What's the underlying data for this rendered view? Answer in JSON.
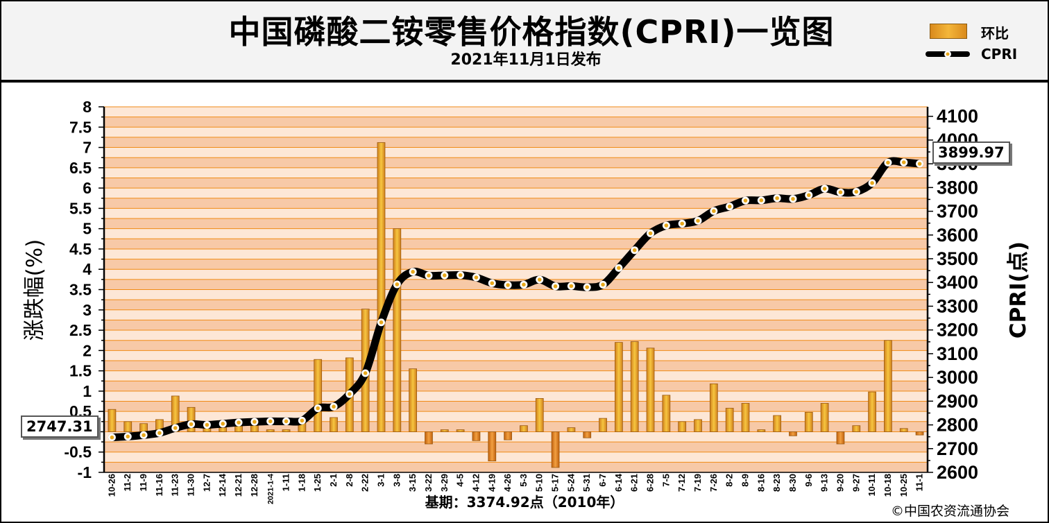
{
  "header": {
    "title": "中国磷酸二铵零售价格指数(CPRI)一览图",
    "subtitle": "2021年11月1日发布"
  },
  "legend": {
    "bar_label": "环比",
    "line_label": "CPRI"
  },
  "callouts": {
    "start_value": "2747.31",
    "end_value": "3899.97"
  },
  "footnote": "基期：3374.92点（2010年）",
  "copyright": "©中国农资流通协会",
  "colors": {
    "band_light": "#fde7d6",
    "band_dark": "#f7c9a7",
    "grid_line": "#f08a14",
    "bar_fill_light": "#f7c640",
    "bar_fill_dark": "#cf7f1c",
    "line": "#000000",
    "marker_fill": "#ffffff",
    "marker_dot": "#e8a81c"
  },
  "chart_data": {
    "type": "bar",
    "categories": [
      "10-26",
      "11-2",
      "11-9",
      "11-16",
      "11-23",
      "11-30",
      "12-7",
      "12-14",
      "12-21",
      "12-28",
      "2021-1-4",
      "1-11",
      "1-18",
      "1-25",
      "2-1",
      "2-8",
      "2-22",
      "3-1",
      "3-8",
      "3-15",
      "3-22",
      "3-29",
      "4-5",
      "4-12",
      "4-19",
      "4-26",
      "5-3",
      "5-10",
      "5-17",
      "5-24",
      "5-31",
      "6-7",
      "6-14",
      "6-21",
      "6-28",
      "7-5",
      "7-12",
      "7-19",
      "7-26",
      "8-2",
      "8-9",
      "8-16",
      "8-23",
      "8-30",
      "9-6",
      "9-13",
      "9-20",
      "9-27",
      "10-11",
      "10-18",
      "10-25",
      "11-1"
    ],
    "tick_labels": [
      "10-26",
      "11-2",
      "11-9",
      "11-16",
      "11-23",
      "11-30",
      "12-7",
      "12-14",
      "12-21",
      "12-28",
      "2021-1-4",
      "1-11",
      "1-18",
      "1-25",
      "2-1",
      "2-8",
      "2-22",
      "3-1",
      "3-8",
      "3-15",
      "3-22",
      "3-29",
      "4-5",
      "4-12",
      "4-19",
      "4-26",
      "5-3",
      "5-10",
      "5-17",
      "5-24",
      "5-31",
      "6-7",
      "6-14",
      "6-21",
      "6-28",
      "7-5",
      "7-12",
      "7-19",
      "7-26",
      "8-2",
      "8-9",
      "8-16",
      "8-23",
      "8-30",
      "9-6",
      "9-13",
      "9-20",
      "9-27",
      "10-11",
      "10-18",
      "10-25",
      "11-1"
    ],
    "series": [
      {
        "name": "环比",
        "axis": "left",
        "type": "bar",
        "values": [
          0.55,
          0.25,
          0.2,
          0.3,
          0.88,
          0.6,
          0.1,
          0.1,
          0.2,
          0.15,
          0.05,
          0.05,
          0.3,
          1.78,
          0.35,
          1.82,
          3.02,
          7.12,
          5.0,
          1.55,
          -0.3,
          0.05,
          0.05,
          -0.22,
          -0.72,
          -0.2,
          0.15,
          0.82,
          -0.88,
          0.1,
          -0.15,
          0.33,
          2.2,
          2.22,
          2.06,
          0.9,
          0.25,
          0.3,
          1.18,
          0.58,
          0.7,
          0.05,
          0.4,
          -0.1,
          0.48,
          0.7,
          -0.3,
          0.15,
          0.98,
          2.25,
          0.08,
          -0.08
        ]
      },
      {
        "name": "CPRI",
        "axis": "right",
        "type": "line",
        "values": [
          2747.31,
          2751,
          2757,
          2766,
          2787,
          2803,
          2800,
          2805,
          2810,
          2813,
          2815,
          2815,
          2818,
          2870,
          2877,
          2930,
          3018,
          3232,
          3392,
          3445,
          3429,
          3430,
          3431,
          3421,
          3397,
          3389,
          3391,
          3412,
          3384,
          3385,
          3380,
          3391,
          3461,
          3536,
          3607,
          3640,
          3648,
          3660,
          3701,
          3720,
          3745,
          3746,
          3755,
          3752,
          3768,
          3795,
          3780,
          3782,
          3819,
          3905,
          3906,
          3899.97
        ]
      }
    ],
    "y_left": {
      "label": "涨跌幅(%)",
      "min": -1,
      "max": 8,
      "step": 0.5,
      "ticks": [
        "-1",
        "-0.5",
        "0",
        "0.5",
        "1",
        "1.5",
        "2",
        "2.5",
        "3",
        "3.5",
        "4",
        "4.5",
        "5",
        "5.5",
        "6",
        "6.5",
        "7",
        "7.5",
        "8"
      ]
    },
    "y_right": {
      "label": "CPRI(点)",
      "min": 2600,
      "max": 4140,
      "step": 100,
      "ticks": [
        "2600",
        "2700",
        "2800",
        "2900",
        "3000",
        "3100",
        "3200",
        "3300",
        "3400",
        "3500",
        "3600",
        "3700",
        "3800",
        "3900",
        "4000",
        "4100"
      ]
    },
    "grid": true,
    "legend_position": "top-right"
  }
}
